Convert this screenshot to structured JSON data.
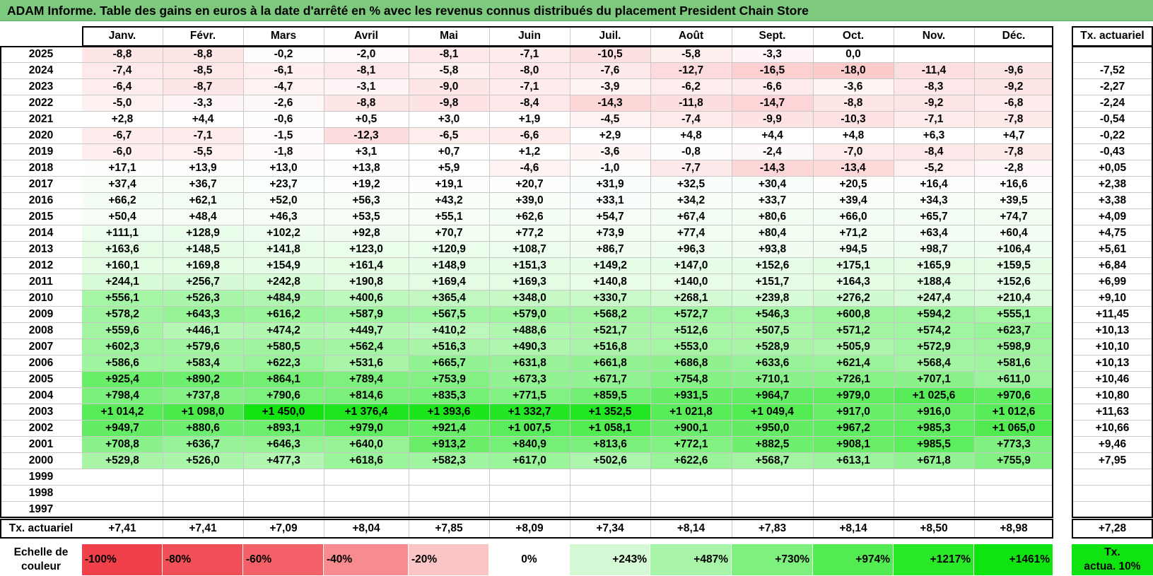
{
  "title": "ADAM Informe. Table des gains en euros à la date d'arrêté en % avec les revenus connus distribués du placement President Chain Store",
  "months": [
    "Janv.",
    "Févr.",
    "Mars",
    "Avril",
    "Mai",
    "Juin",
    "Juil.",
    "Août",
    "Sept.",
    "Oct.",
    "Nov.",
    "Déc."
  ],
  "tx_header": "Tx. actuariel",
  "rows": [
    {
      "year": "2025",
      "values": [
        "-8,8",
        "-8,8",
        "-0,2",
        "-2,0",
        "-8,1",
        "-7,1",
        "-10,5",
        "-5,8",
        "-3,3",
        "0,0",
        "",
        ""
      ],
      "tx": ""
    },
    {
      "year": "2024",
      "values": [
        "-7,4",
        "-8,5",
        "-6,1",
        "-8,1",
        "-5,8",
        "-8,0",
        "-7,6",
        "-12,7",
        "-16,5",
        "-18,0",
        "-11,4",
        "-9,6"
      ],
      "tx": "-7,52"
    },
    {
      "year": "2023",
      "values": [
        "-6,4",
        "-8,7",
        "-4,7",
        "-3,1",
        "-9,0",
        "-7,1",
        "-3,9",
        "-6,2",
        "-6,6",
        "-3,6",
        "-8,3",
        "-9,2"
      ],
      "tx": "-2,27"
    },
    {
      "year": "2022",
      "values": [
        "-5,0",
        "-3,3",
        "-2,6",
        "-8,8",
        "-9,8",
        "-8,4",
        "-14,3",
        "-11,8",
        "-14,7",
        "-8,8",
        "-9,2",
        "-6,8"
      ],
      "tx": "-2,24"
    },
    {
      "year": "2021",
      "values": [
        "+2,8",
        "+4,4",
        "-0,6",
        "+0,5",
        "+3,0",
        "+1,9",
        "-4,5",
        "-7,4",
        "-9,9",
        "-10,3",
        "-7,1",
        "-7,8"
      ],
      "tx": "-0,54"
    },
    {
      "year": "2020",
      "values": [
        "-6,7",
        "-7,1",
        "-1,5",
        "-12,3",
        "-6,5",
        "-6,6",
        "+2,9",
        "+4,8",
        "+4,4",
        "+4,8",
        "+6,3",
        "+4,7"
      ],
      "tx": "-0,22"
    },
    {
      "year": "2019",
      "values": [
        "-6,0",
        "-5,5",
        "-1,8",
        "+3,1",
        "+0,7",
        "+1,2",
        "-3,6",
        "-0,8",
        "-2,4",
        "-7,0",
        "-8,4",
        "-7,8"
      ],
      "tx": "-0,43"
    },
    {
      "year": "2018",
      "values": [
        "+17,1",
        "+13,9",
        "+13,0",
        "+13,8",
        "+5,9",
        "-4,6",
        "-1,0",
        "-7,7",
        "-14,3",
        "-13,4",
        "-5,2",
        "-2,8"
      ],
      "tx": "+0,05"
    },
    {
      "year": "2017",
      "values": [
        "+37,4",
        "+36,7",
        "+23,7",
        "+19,2",
        "+19,1",
        "+20,7",
        "+31,9",
        "+32,5",
        "+30,4",
        "+20,5",
        "+16,4",
        "+16,6"
      ],
      "tx": "+2,38"
    },
    {
      "year": "2016",
      "values": [
        "+66,2",
        "+62,1",
        "+52,0",
        "+56,3",
        "+43,2",
        "+39,0",
        "+33,1",
        "+34,2",
        "+33,7",
        "+39,4",
        "+34,3",
        "+39,5"
      ],
      "tx": "+3,38"
    },
    {
      "year": "2015",
      "values": [
        "+50,4",
        "+48,4",
        "+46,3",
        "+53,5",
        "+55,1",
        "+62,6",
        "+54,7",
        "+67,4",
        "+80,6",
        "+66,0",
        "+65,7",
        "+74,7"
      ],
      "tx": "+4,09"
    },
    {
      "year": "2014",
      "values": [
        "+111,1",
        "+128,9",
        "+102,2",
        "+92,8",
        "+70,7",
        "+77,2",
        "+73,9",
        "+77,4",
        "+80,4",
        "+71,2",
        "+63,4",
        "+60,4"
      ],
      "tx": "+4,75"
    },
    {
      "year": "2013",
      "values": [
        "+163,6",
        "+148,5",
        "+141,8",
        "+123,0",
        "+120,9",
        "+108,7",
        "+86,7",
        "+96,3",
        "+93,8",
        "+94,5",
        "+98,7",
        "+106,4"
      ],
      "tx": "+5,61"
    },
    {
      "year": "2012",
      "values": [
        "+160,1",
        "+169,8",
        "+154,9",
        "+161,4",
        "+148,9",
        "+151,3",
        "+149,2",
        "+147,0",
        "+152,6",
        "+175,1",
        "+165,9",
        "+159,5"
      ],
      "tx": "+6,84"
    },
    {
      "year": "2011",
      "values": [
        "+244,1",
        "+256,7",
        "+242,8",
        "+190,8",
        "+169,4",
        "+169,3",
        "+140,8",
        "+140,0",
        "+151,7",
        "+164,3",
        "+188,4",
        "+152,6"
      ],
      "tx": "+6,99"
    },
    {
      "year": "2010",
      "values": [
        "+556,1",
        "+526,3",
        "+484,9",
        "+400,6",
        "+365,4",
        "+348,0",
        "+330,7",
        "+268,1",
        "+239,8",
        "+276,2",
        "+247,4",
        "+210,4"
      ],
      "tx": "+9,10"
    },
    {
      "year": "2009",
      "values": [
        "+578,2",
        "+643,3",
        "+616,2",
        "+587,9",
        "+567,5",
        "+579,0",
        "+568,2",
        "+572,7",
        "+546,3",
        "+600,8",
        "+594,2",
        "+555,1"
      ],
      "tx": "+11,45"
    },
    {
      "year": "2008",
      "values": [
        "+559,6",
        "+446,1",
        "+474,2",
        "+449,7",
        "+410,2",
        "+488,6",
        "+521,7",
        "+512,6",
        "+507,5",
        "+571,2",
        "+574,2",
        "+623,7"
      ],
      "tx": "+10,13"
    },
    {
      "year": "2007",
      "values": [
        "+602,3",
        "+579,6",
        "+580,5",
        "+562,4",
        "+516,3",
        "+490,3",
        "+516,8",
        "+553,0",
        "+528,9",
        "+505,9",
        "+572,9",
        "+598,9"
      ],
      "tx": "+10,10"
    },
    {
      "year": "2006",
      "values": [
        "+586,6",
        "+583,4",
        "+622,3",
        "+531,6",
        "+665,7",
        "+631,8",
        "+661,8",
        "+686,8",
        "+633,6",
        "+621,4",
        "+568,4",
        "+581,6"
      ],
      "tx": "+10,13"
    },
    {
      "year": "2005",
      "values": [
        "+925,4",
        "+890,2",
        "+864,1",
        "+789,4",
        "+753,9",
        "+673,3",
        "+671,7",
        "+754,8",
        "+710,1",
        "+726,1",
        "+707,1",
        "+611,0"
      ],
      "tx": "+10,46"
    },
    {
      "year": "2004",
      "values": [
        "+798,4",
        "+737,8",
        "+790,6",
        "+814,6",
        "+835,3",
        "+771,5",
        "+859,5",
        "+931,5",
        "+964,7",
        "+979,0",
        "+1 025,6",
        "+970,6"
      ],
      "tx": "+10,80"
    },
    {
      "year": "2003",
      "values": [
        "+1 014,2",
        "+1 098,0",
        "+1 450,0",
        "+1 376,4",
        "+1 393,6",
        "+1 332,7",
        "+1 352,5",
        "+1 021,8",
        "+1 049,4",
        "+917,0",
        "+916,0",
        "+1 012,6"
      ],
      "tx": "+11,63"
    },
    {
      "year": "2002",
      "values": [
        "+949,7",
        "+880,6",
        "+893,1",
        "+979,0",
        "+921,4",
        "+1 007,5",
        "+1 058,1",
        "+900,1",
        "+950,0",
        "+967,2",
        "+985,3",
        "+1 065,0"
      ],
      "tx": "+10,66"
    },
    {
      "year": "2001",
      "values": [
        "+708,8",
        "+636,7",
        "+646,3",
        "+640,0",
        "+913,2",
        "+840,9",
        "+813,6",
        "+772,1",
        "+882,5",
        "+908,1",
        "+985,5",
        "+773,3"
      ],
      "tx": "+9,46"
    },
    {
      "year": "2000",
      "values": [
        "+529,8",
        "+526,0",
        "+477,3",
        "+618,6",
        "+582,3",
        "+617,0",
        "+502,6",
        "+622,6",
        "+568,7",
        "+613,1",
        "+671,8",
        "+755,9"
      ],
      "tx": "+7,95"
    },
    {
      "year": "1999",
      "values": [
        "",
        "",
        "",
        "",
        "",
        "",
        "",
        "",
        "",
        "",
        "",
        ""
      ],
      "tx": ""
    },
    {
      "year": "1998",
      "values": [
        "",
        "",
        "",
        "",
        "",
        "",
        "",
        "",
        "",
        "",
        "",
        ""
      ],
      "tx": ""
    },
    {
      "year": "1997",
      "values": [
        "",
        "",
        "",
        "",
        "",
        "",
        "",
        "",
        "",
        "",
        "",
        ""
      ],
      "tx": ""
    }
  ],
  "footer": {
    "label": "Tx. actuariel",
    "values": [
      "+7,41",
      "+7,41",
      "+7,09",
      "+8,04",
      "+7,85",
      "+8,09",
      "+7,34",
      "+8,14",
      "+7,83",
      "+8,14",
      "+8,50",
      "+8,98"
    ],
    "tx": "+7,28"
  },
  "legend": {
    "label_line1": "Echelle de",
    "label_line2": "couleur",
    "cells": [
      {
        "text": "-100%",
        "color": "#f0404a",
        "align": "left"
      },
      {
        "text": "-80%",
        "color": "#f25058",
        "align": "left"
      },
      {
        "text": "-60%",
        "color": "#f46068",
        "align": "left"
      },
      {
        "text": "-40%",
        "color": "#f78c90",
        "align": "left"
      },
      {
        "text": "-20%",
        "color": "#fbc4c6",
        "align": "left"
      },
      {
        "text": "0%",
        "color": "#ffffff",
        "align": "center"
      },
      {
        "text": "+243%",
        "color": "#d4f9d4",
        "align": "right"
      },
      {
        "text": "+487%",
        "color": "#a8f4a8",
        "align": "right"
      },
      {
        "text": "+730%",
        "color": "#7ef07e",
        "align": "right"
      },
      {
        "text": "+974%",
        "color": "#52ec52",
        "align": "right"
      },
      {
        "text": "+1217%",
        "color": "#28e828",
        "align": "right"
      },
      {
        "text": "+1461%",
        "color": "#10e410",
        "align": "right"
      }
    ],
    "tx_line1": "Tx.",
    "tx_line2": "actua. 10%",
    "tx_color": "#10e410"
  }
}
